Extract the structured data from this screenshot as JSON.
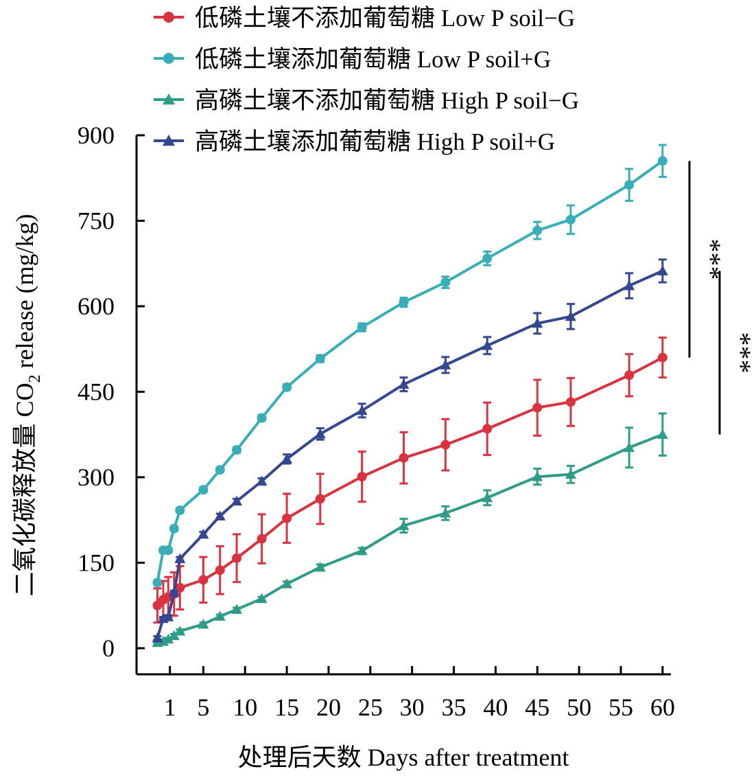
{
  "chart_data": {
    "type": "line",
    "xlabel": "处理后天数 Days after treatment",
    "ylabel_main": "二氧化碳释放量 CO",
    "ylabel_sub": "2",
    "ylabel_tail": " release (mg/kg)",
    "xlim": [
      -3,
      61
    ],
    "ylim": [
      0,
      900
    ],
    "xticks": [
      1,
      5,
      10,
      15,
      20,
      25,
      30,
      35,
      40,
      45,
      50,
      55,
      60
    ],
    "yticks": [
      0,
      150,
      300,
      450,
      600,
      750,
      900
    ],
    "x": [
      -0.5,
      0.2,
      0.8,
      1.5,
      2.2,
      5,
      7,
      9,
      12,
      15,
      19,
      24,
      29,
      34,
      39,
      45,
      49,
      56,
      60
    ],
    "series": [
      {
        "name": "低磷土壤不添加葡萄糖 Low P soil−G",
        "color": "#d8333f",
        "marker": "circle",
        "x": [
          -0.5,
          0.2,
          0.8,
          1.5,
          2.2,
          5,
          7,
          9,
          12,
          15,
          19,
          24,
          29,
          34,
          39,
          45,
          49,
          56,
          60
        ],
        "values": [
          75,
          85,
          90,
          95,
          106,
          120,
          137,
          158,
          192,
          228,
          262,
          301,
          334,
          357,
          385,
          422,
          432,
          479,
          510
        ],
        "errors": [
          30,
          33,
          35,
          38,
          38,
          40,
          42,
          42,
          43,
          43,
          44,
          44,
          45,
          45,
          46,
          49,
          42,
          37,
          35
        ]
      },
      {
        "name": "低磷土壤添加葡萄糖 Low P soil+G",
        "color": "#39aeb8",
        "marker": "circle",
        "x": [
          -0.5,
          0.2,
          0.8,
          1.5,
          2.2,
          5,
          7,
          9,
          12,
          15,
          19,
          24,
          29,
          34,
          39,
          45,
          49,
          56,
          60
        ],
        "values": [
          115,
          172,
          172,
          210,
          242,
          278,
          313,
          348,
          404,
          458,
          508,
          563,
          607,
          642,
          684,
          733,
          752,
          813,
          855
        ],
        "errors": [
          4,
          4,
          4,
          4,
          4,
          4,
          4,
          5,
          5,
          5,
          6,
          7,
          8,
          10,
          12,
          15,
          25,
          28,
          28
        ]
      },
      {
        "name": "高磷土壤不添加葡萄糖 High P soil−G",
        "color": "#2f9c88",
        "marker": "triangle",
        "x": [
          -0.5,
          0.2,
          0.8,
          1.5,
          2.2,
          5,
          7,
          9,
          12,
          15,
          19,
          24,
          29,
          34,
          39,
          45,
          49,
          56,
          60
        ],
        "values": [
          10,
          12,
          16,
          22,
          30,
          42,
          56,
          68,
          87,
          113,
          142,
          171,
          215,
          237,
          264,
          301,
          305,
          352,
          375
        ],
        "errors": [
          2,
          2,
          2,
          3,
          3,
          3,
          3,
          3,
          3,
          4,
          5,
          5,
          12,
          12,
          13,
          14,
          15,
          35,
          37
        ]
      },
      {
        "name": "高磷土壤添加葡萄糖 High P soil+G",
        "color": "#34478f",
        "marker": "triangle",
        "x": [
          -0.5,
          0.2,
          0.8,
          1.5,
          2.2,
          5,
          7,
          9,
          12,
          15,
          19,
          24,
          29,
          34,
          39,
          45,
          49,
          56,
          60
        ],
        "values": [
          18,
          52,
          55,
          98,
          157,
          200,
          232,
          258,
          293,
          332,
          376,
          417,
          463,
          497,
          531,
          570,
          582,
          636,
          662
        ],
        "errors": [
          3,
          3,
          3,
          3,
          3,
          4,
          4,
          4,
          5,
          8,
          10,
          12,
          12,
          14,
          15,
          18,
          22,
          22,
          20
        ]
      }
    ],
    "legend": {
      "placement": "top"
    },
    "annotations": [
      {
        "text": "***",
        "from_value": 855,
        "to_value": 510,
        "note": "Low P soil+G vs Low P soil−G"
      },
      {
        "text": "***",
        "from_value": 662,
        "to_value": 375,
        "note": "High P soil+G vs High P soil−G"
      }
    ],
    "grid": false
  }
}
